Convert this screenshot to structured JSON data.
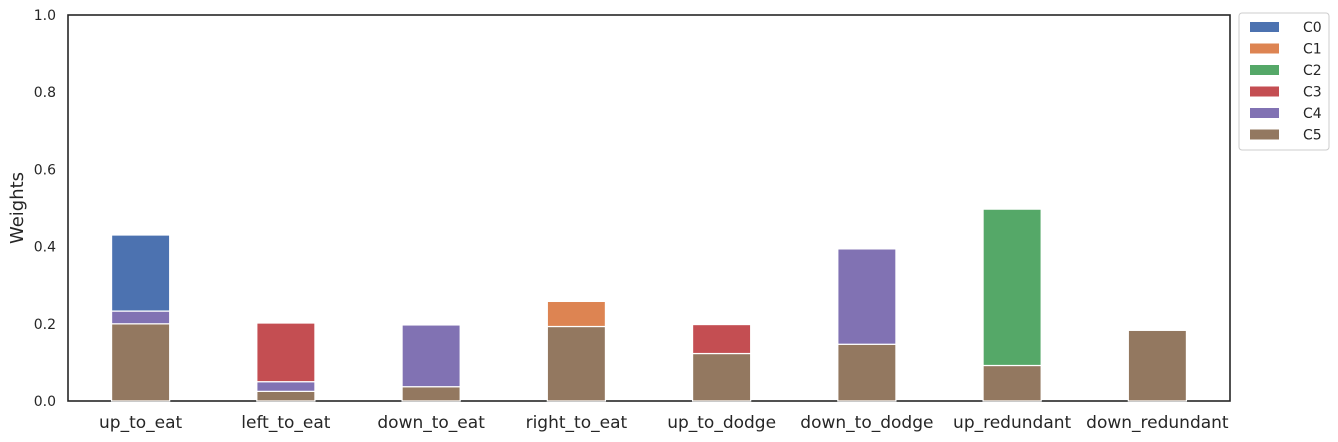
{
  "chart_data": {
    "type": "bar",
    "stacked": true,
    "categories": [
      "up_to_eat",
      "left_to_eat",
      "down_to_eat",
      "right_to_eat",
      "up_to_dodge",
      "down_to_dodge",
      "up_redundant",
      "down_redundant"
    ],
    "ylabel": "Weights",
    "xlabel": "",
    "title": "",
    "ylim": [
      0,
      1.0
    ],
    "yticks": [
      "0.0",
      "0.2",
      "0.4",
      "0.6",
      "0.8",
      "1.0"
    ],
    "grid": false,
    "legend_placement": "outside-top-right",
    "series": [
      {
        "name": "C0",
        "color": "#4c72b0",
        "values": [
          0.197,
          0,
          0,
          0,
          0,
          0,
          0,
          0
        ]
      },
      {
        "name": "C1",
        "color": "#dd8452",
        "values": [
          0,
          0,
          0,
          0.065,
          0,
          0,
          0,
          0
        ]
      },
      {
        "name": "C2",
        "color": "#55a868",
        "values": [
          0,
          0,
          0,
          0,
          0,
          0,
          0.405,
          0
        ]
      },
      {
        "name": "C3",
        "color": "#c44e52",
        "values": [
          0,
          0.152,
          0,
          0,
          0.075,
          0,
          0,
          0
        ]
      },
      {
        "name": "C4",
        "color": "#8172b3",
        "values": [
          0.033,
          0.025,
          0.16,
          0,
          0,
          0.247,
          0,
          0
        ]
      },
      {
        "name": "C5",
        "color": "#937860",
        "values": [
          0.2,
          0.025,
          0.037,
          0.193,
          0.123,
          0.147,
          0.092,
          0.183
        ]
      }
    ],
    "stack_order_bottom_to_top": [
      "C5",
      "C4",
      "C3",
      "C2",
      "C1",
      "C0"
    ]
  }
}
